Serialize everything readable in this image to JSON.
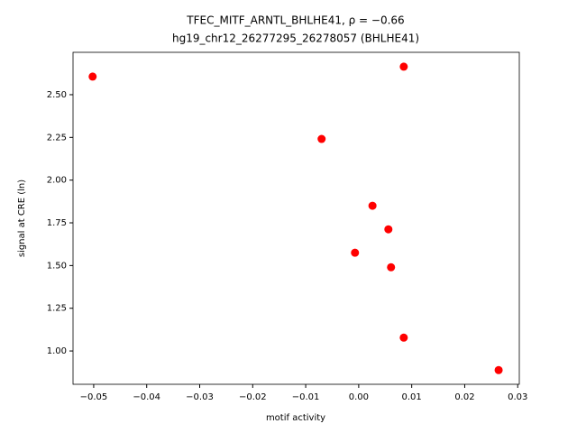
{
  "chart_data": {
    "type": "scatter",
    "title": "TFEC_MITF_ARNTL_BHLHE41, ρ = −0.66",
    "subtitle": "hg19_chr12_26277295_26278057 (BHLHE41)",
    "x_label": "motif activity",
    "y_label": "signal at CRE (ln)",
    "color": "#ff0000",
    "x": [
      -0.0502,
      0.0085,
      -0.007,
      0.0026,
      0.0056,
      -0.0007,
      0.0061,
      0.0085,
      0.0264
    ],
    "values": [
      2.606,
      2.664,
      2.241,
      1.85,
      1.712,
      1.575,
      1.49,
      1.078,
      0.888
    ],
    "xlim": [
      -0.0539,
      0.0303
    ],
    "ylim": [
      0.805,
      2.748
    ],
    "xticks": [
      {
        "value": -0.05,
        "label": "−0.05"
      },
      {
        "value": -0.04,
        "label": "−0.04"
      },
      {
        "value": -0.03,
        "label": "−0.03"
      },
      {
        "value": -0.02,
        "label": "−0.02"
      },
      {
        "value": -0.01,
        "label": "−0.01"
      },
      {
        "value": 0,
        "label": "0.00"
      },
      0.01,
      0.02,
      0.03
    ],
    "yticks": [
      {
        "value": 1,
        "label": "1.00"
      },
      1.25,
      {
        "value": 1.5,
        "label": "1.50"
      },
      1.75,
      {
        "value": 2,
        "label": "2.00"
      },
      2.25,
      {
        "value": 2.5,
        "label": "2.50"
      }
    ],
    "grid": false
  }
}
